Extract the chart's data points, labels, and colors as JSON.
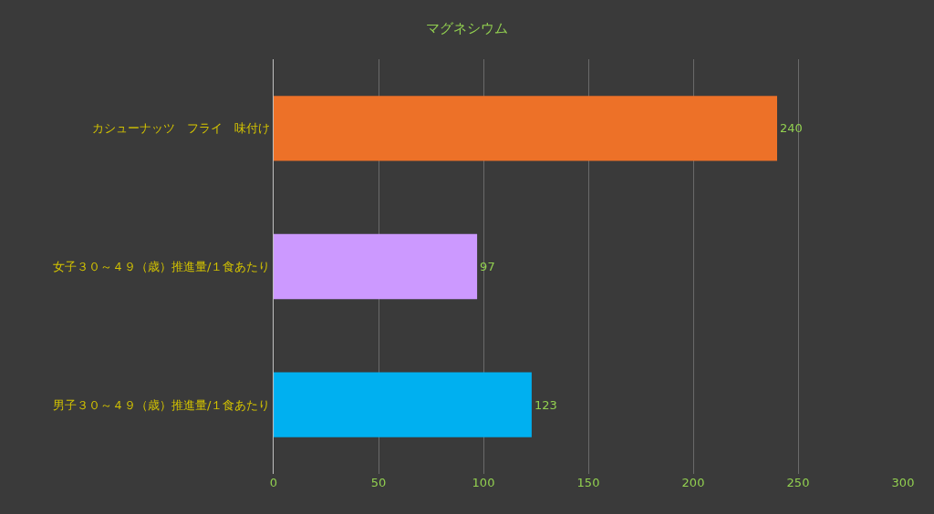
{
  "chart_data": {
    "type": "bar",
    "orientation": "horizontal",
    "title": "マグネシウム",
    "categories": [
      "カシューナッツ　フライ　味付け",
      "女子３０～４９（歳）推進量/１食あたり",
      "男子３０～４９（歳）推進量/１食あたり"
    ],
    "values": [
      240,
      97,
      123
    ],
    "colors": [
      "#ed7128",
      "#cc99ff",
      "#00b0f0"
    ],
    "xlim": [
      0,
      300
    ],
    "xticks": [
      0,
      50,
      100,
      150,
      200,
      250,
      300
    ],
    "grid": "x",
    "data_labels": true
  }
}
